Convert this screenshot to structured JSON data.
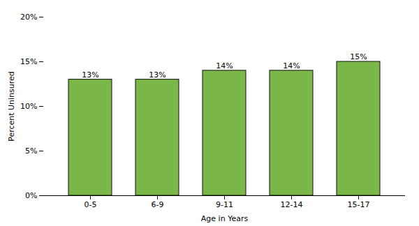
{
  "chart_data": {
    "type": "bar",
    "xlabel": "Age in Years",
    "ylabel": "Percent Uninsured",
    "categories": [
      "0-5",
      "6-9",
      "9-11",
      "12-14",
      "15-17"
    ],
    "values": [
      13,
      13,
      14,
      14,
      15
    ],
    "value_labels": [
      "13%",
      "13%",
      "14%",
      "14%",
      "15%"
    ],
    "data_labels": true,
    "color": "#7ab648",
    "ylim": [
      0,
      20
    ],
    "yticks": [
      {
        "value": 0,
        "label": "0%"
      },
      {
        "value": 5,
        "label": "5%"
      },
      {
        "value": 10,
        "label": "10%"
      },
      {
        "value": 15,
        "label": "15%"
      },
      {
        "value": 20,
        "label": "20%"
      }
    ],
    "grid": false
  }
}
